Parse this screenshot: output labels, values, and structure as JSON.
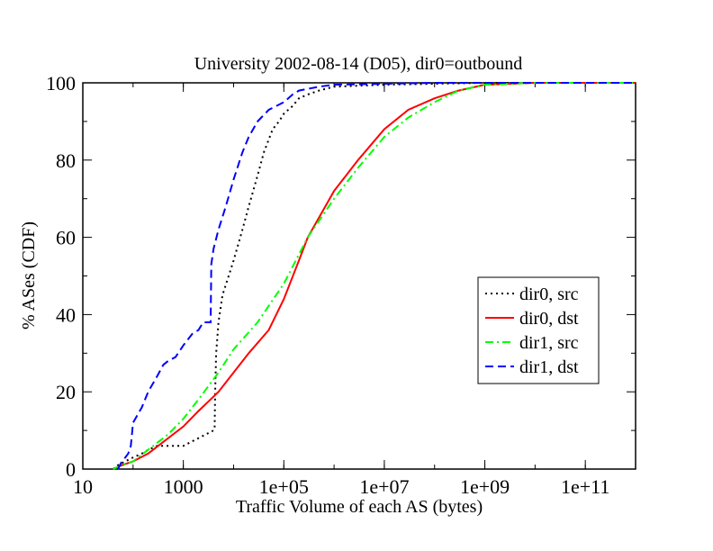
{
  "chart_data": {
    "type": "line",
    "title": "University 2002-08-14 (D05), dir0=outbound",
    "xlabel": "Traffic Volume of each AS (bytes)",
    "ylabel": "% ASes (CDF)",
    "x_scale": "log",
    "xlim": [
      10,
      1000000000000
    ],
    "ylim": [
      0,
      100
    ],
    "x_ticks": [
      10,
      1000,
      100000,
      10000000,
      1000000000,
      100000000000
    ],
    "x_tick_labels": [
      "10",
      "1000",
      "1e+05",
      "1e+07",
      "1e+09",
      "1e+11"
    ],
    "y_ticks": [
      0,
      20,
      40,
      60,
      80,
      100
    ],
    "y_tick_labels": [
      "0",
      "20",
      "40",
      "60",
      "80",
      "100"
    ],
    "legend_position": "right",
    "series": [
      {
        "name": "dir0, src",
        "color": "#000000",
        "style": "dotted",
        "points": [
          [
            40,
            0
          ],
          [
            50,
            1
          ],
          [
            70,
            2
          ],
          [
            100,
            3
          ],
          [
            150,
            4
          ],
          [
            200,
            5
          ],
          [
            300,
            6
          ],
          [
            1000,
            6
          ],
          [
            2000,
            8
          ],
          [
            4000,
            10
          ],
          [
            4200,
            10.5
          ],
          [
            4300,
            20
          ],
          [
            4500,
            30
          ],
          [
            5000,
            38
          ],
          [
            6000,
            45
          ],
          [
            8000,
            50
          ],
          [
            10000,
            54
          ],
          [
            15000,
            62
          ],
          [
            20000,
            68
          ],
          [
            30000,
            76
          ],
          [
            40000,
            82
          ],
          [
            60000,
            88
          ],
          [
            80000,
            90
          ],
          [
            100000,
            92
          ],
          [
            150000,
            94
          ],
          [
            200000,
            96
          ],
          [
            300000,
            97
          ],
          [
            500000,
            98
          ],
          [
            1000000,
            99
          ],
          [
            10000000,
            99.5
          ],
          [
            1000000000,
            100
          ],
          [
            1000000000000,
            100
          ]
        ]
      },
      {
        "name": "dir0, dst",
        "color": "#ff0000",
        "style": "solid",
        "points": [
          [
            40,
            0
          ],
          [
            60,
            1
          ],
          [
            100,
            2
          ],
          [
            200,
            4
          ],
          [
            500,
            8
          ],
          [
            1000,
            11
          ],
          [
            2000,
            15
          ],
          [
            5000,
            20
          ],
          [
            10000,
            25
          ],
          [
            20000,
            30
          ],
          [
            50000,
            36
          ],
          [
            100000,
            44
          ],
          [
            200000,
            54
          ],
          [
            300000,
            60
          ],
          [
            1000000,
            72
          ],
          [
            3000000,
            80
          ],
          [
            10000000,
            88
          ],
          [
            30000000,
            93
          ],
          [
            100000000,
            96
          ],
          [
            300000000,
            98
          ],
          [
            1000000000,
            99.5
          ],
          [
            10000000000,
            100
          ],
          [
            1000000000000,
            100
          ]
        ]
      },
      {
        "name": "dir1, src",
        "color": "#00ff00",
        "style": "dashdot",
        "points": [
          [
            40,
            0
          ],
          [
            60,
            1
          ],
          [
            100,
            2
          ],
          [
            200,
            5
          ],
          [
            500,
            9
          ],
          [
            1000,
            13
          ],
          [
            2000,
            18
          ],
          [
            5000,
            25
          ],
          [
            10000,
            31
          ],
          [
            30000,
            38
          ],
          [
            100000,
            48
          ],
          [
            300000,
            60
          ],
          [
            1000000,
            70
          ],
          [
            3000000,
            78
          ],
          [
            10000000,
            86
          ],
          [
            30000000,
            91
          ],
          [
            100000000,
            95
          ],
          [
            300000000,
            98
          ],
          [
            1000000000,
            99.5
          ],
          [
            10000000000,
            100
          ],
          [
            1000000000000,
            100
          ]
        ]
      },
      {
        "name": "dir1, dst",
        "color": "#0000ff",
        "style": "dashed",
        "points": [
          [
            50,
            0
          ],
          [
            60,
            2
          ],
          [
            70,
            3
          ],
          [
            80,
            4
          ],
          [
            90,
            6
          ],
          [
            100,
            12
          ],
          [
            150,
            16
          ],
          [
            200,
            20
          ],
          [
            300,
            24
          ],
          [
            400,
            27
          ],
          [
            500,
            28
          ],
          [
            700,
            29
          ],
          [
            1000,
            32
          ],
          [
            1500,
            35
          ],
          [
            2000,
            36
          ],
          [
            2500,
            38
          ],
          [
            3500,
            38
          ],
          [
            3600,
            53
          ],
          [
            4000,
            57
          ],
          [
            5000,
            62
          ],
          [
            7000,
            68
          ],
          [
            10000,
            75
          ],
          [
            15000,
            82
          ],
          [
            20000,
            86
          ],
          [
            30000,
            90
          ],
          [
            50000,
            93
          ],
          [
            100000,
            95
          ],
          [
            150000,
            97
          ],
          [
            200000,
            98
          ],
          [
            500000,
            99
          ],
          [
            1000000,
            99.5
          ],
          [
            100000000,
            100
          ],
          [
            1000000000000,
            100
          ]
        ]
      }
    ]
  }
}
